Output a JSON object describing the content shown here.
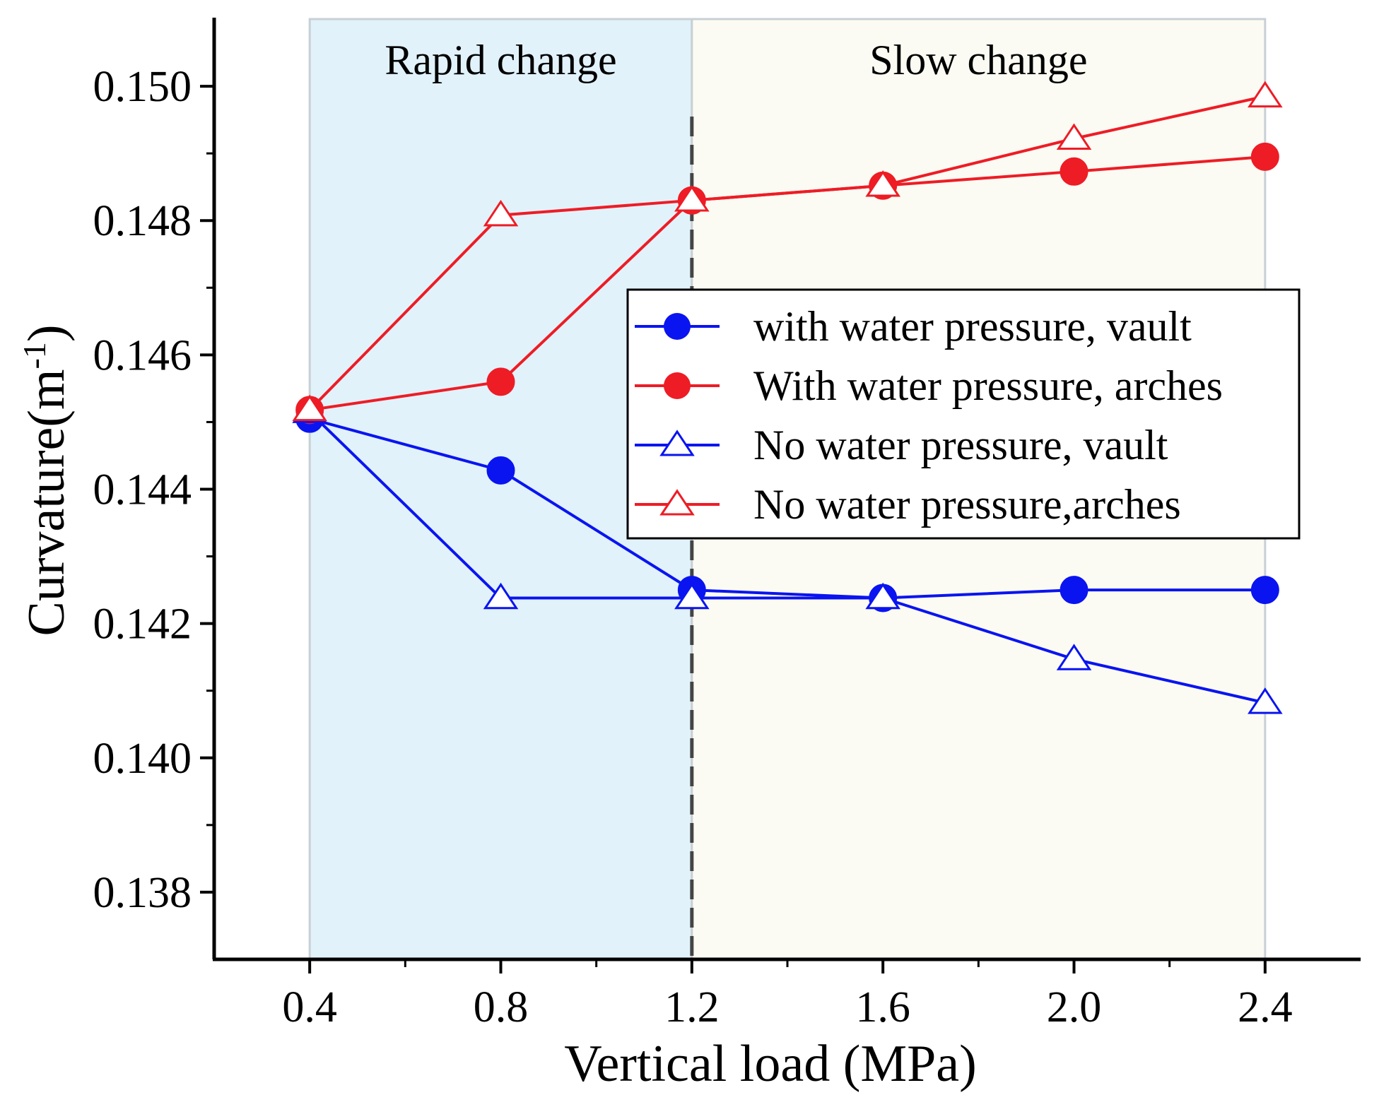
{
  "chart_data": {
    "type": "line",
    "title": "",
    "xlabel": "Vertical load (MPa)",
    "ylabel": "Curvature(m",
    "ylabel_superscript": "-1",
    "ylabel_suffix": ")",
    "xlim": [
      0.2,
      2.6
    ],
    "ylim": [
      0.137,
      0.151
    ],
    "x": [
      0.4,
      0.8,
      1.2,
      1.6,
      2.0,
      2.4
    ],
    "xticks": [
      "0.4",
      "0.8",
      "1.2",
      "1.6",
      "2.0",
      "2.4"
    ],
    "yticks": [
      "0.138",
      "0.140",
      "0.142",
      "0.144",
      "0.146",
      "0.148",
      "0.150"
    ],
    "regions": [
      {
        "label": "Rapid change",
        "x_start": 0.4,
        "x_end": 1.2,
        "color": "#e1f2fb"
      },
      {
        "label": "Slow change",
        "x_start": 1.2,
        "x_end": 2.4,
        "color": "#fbfbf3"
      }
    ],
    "divider_x": 1.2,
    "series": [
      {
        "name": "with water pressure, vault",
        "color": "#0a14f0",
        "marker": "circle-filled",
        "values": [
          0.14505,
          0.14428,
          0.1425,
          0.14238,
          0.1425,
          0.1425
        ]
      },
      {
        "name": "With water pressure, arches",
        "color": "#ee1c25",
        "marker": "circle-filled",
        "values": [
          0.14518,
          0.1456,
          0.1483,
          0.14852,
          0.14873,
          0.14895
        ]
      },
      {
        "name": "No water pressure, vault",
        "color": "#0a14f0",
        "marker": "triangle-open",
        "values": [
          0.14515,
          0.14238,
          0.14238,
          0.14238,
          0.14147,
          0.14082
        ]
      },
      {
        "name": "No water pressure,arches",
        "color": "#ee1c25",
        "marker": "triangle-open",
        "values": [
          0.14518,
          0.14808,
          0.1483,
          0.14852,
          0.14922,
          0.14985
        ]
      }
    ],
    "legend_position": "center-right"
  }
}
